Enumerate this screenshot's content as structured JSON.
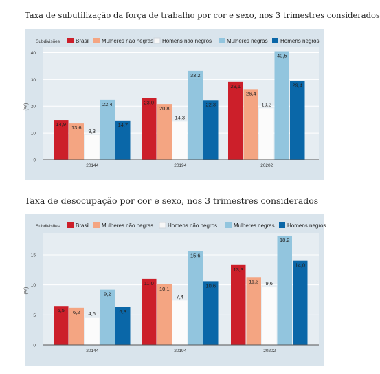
{
  "captions": {
    "chart1": "Taxa de subutilização da força de trabalho por cor e sexo, nos 3 trimestres considerados",
    "chart2": "Taxa de desocupação por cor e sexo, nos 3 trimestres considerados"
  },
  "colors": {
    "Brasil": "#cc1f2a",
    "Mulheres não negras": "#f4a582",
    "Homens não negros": "#f7f7f7",
    "Mulheres negras": "#92c5de",
    "Homens negros": "#0a67a8",
    "panel_background": "#d9e4ec",
    "plot_background": "#e6edf2"
  },
  "chart_data": [
    {
      "type": "bar",
      "title": "",
      "legend_title": "Subdivisões",
      "legend_position": "top",
      "ylabel": "(%)",
      "xlabel": "",
      "categories": [
        "20144",
        "20194",
        "20202"
      ],
      "ylim": [
        0,
        45
      ],
      "yticks": [
        0,
        10,
        20,
        30,
        40
      ],
      "series": [
        {
          "name": "Brasil",
          "values": [
            14.9,
            23.0,
            29.1
          ]
        },
        {
          "name": "Mulheres não negras",
          "values": [
            13.6,
            20.8,
            26.4
          ]
        },
        {
          "name": "Homens não negros",
          "values": [
            9.3,
            14.3,
            19.2
          ]
        },
        {
          "name": "Mulheres negras",
          "values": [
            22.4,
            33.2,
            40.5
          ]
        },
        {
          "name": "Homens negros",
          "values": [
            14.7,
            22.3,
            29.4
          ]
        }
      ],
      "data_labels": [
        [
          "14,9",
          "23,0",
          "29,1"
        ],
        [
          "13,6",
          "20,8",
          "26,4"
        ],
        [
          "9,3",
          "14,3",
          "19,2"
        ],
        [
          "22,4",
          "33,2",
          "40,5"
        ],
        [
          "14,7",
          "22,3",
          "29,4"
        ]
      ]
    },
    {
      "type": "bar",
      "title": "",
      "legend_title": "Subdivisões",
      "legend_position": "top",
      "ylabel": "(%)",
      "xlabel": "",
      "categories": [
        "20144",
        "20194",
        "20202"
      ],
      "ylim": [
        0,
        19
      ],
      "yticks": [
        0,
        5,
        10,
        15
      ],
      "series": [
        {
          "name": "Brasil",
          "values": [
            6.5,
            11.0,
            13.3
          ]
        },
        {
          "name": "Mulheres não negras",
          "values": [
            6.2,
            10.1,
            11.3
          ]
        },
        {
          "name": "Homens não negros",
          "values": [
            4.6,
            7.4,
            9.6
          ]
        },
        {
          "name": "Mulheres negras",
          "values": [
            9.2,
            15.6,
            18.2
          ]
        },
        {
          "name": "Homens negros",
          "values": [
            6.3,
            10.6,
            14.0
          ]
        }
      ],
      "data_labels": [
        [
          "6,5",
          "11,0",
          "13,3"
        ],
        [
          "6,2",
          "10,1",
          "11,3"
        ],
        [
          "4,6",
          "7,4",
          "9,6"
        ],
        [
          "9,2",
          "15,6",
          "18,2"
        ],
        [
          "6,3",
          "10,6",
          "14,0"
        ]
      ]
    }
  ]
}
